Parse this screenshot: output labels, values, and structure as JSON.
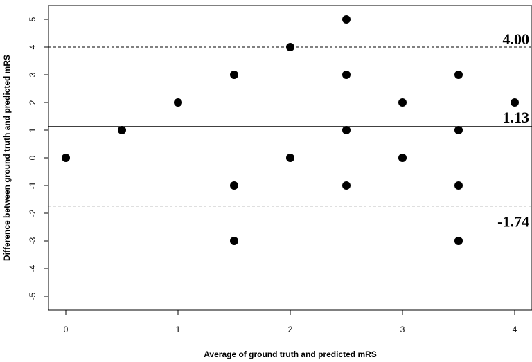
{
  "chart_data": {
    "type": "scatter",
    "title": "",
    "xlabel": "Average of ground truth and predicted mRS",
    "ylabel": "Difference between ground truth and predicted mRS",
    "xlim": [
      -0.15,
      4.15
    ],
    "ylim": [
      -5.5,
      5.5
    ],
    "x_ticks": [
      "0",
      "1",
      "2",
      "3",
      "4"
    ],
    "y_ticks": [
      "5",
      "4",
      "3",
      "2",
      "1",
      "0",
      "-1",
      "-2",
      "-3",
      "-4",
      "-5"
    ],
    "points": [
      {
        "x": 0,
        "y": 0
      },
      {
        "x": 0.5,
        "y": 1
      },
      {
        "x": 1,
        "y": 2
      },
      {
        "x": 1.5,
        "y": 3
      },
      {
        "x": 1.5,
        "y": -1
      },
      {
        "x": 1.5,
        "y": -3
      },
      {
        "x": 2,
        "y": 4
      },
      {
        "x": 2,
        "y": 0
      },
      {
        "x": 2.5,
        "y": 5
      },
      {
        "x": 2.5,
        "y": 3
      },
      {
        "x": 2.5,
        "y": 1
      },
      {
        "x": 2.5,
        "y": -1
      },
      {
        "x": 3,
        "y": 2
      },
      {
        "x": 3,
        "y": 0
      },
      {
        "x": 3.5,
        "y": 3
      },
      {
        "x": 3.5,
        "y": 1
      },
      {
        "x": 3.5,
        "y": -1
      },
      {
        "x": 3.5,
        "y": -3
      },
      {
        "x": 4,
        "y": 2
      }
    ],
    "reference_lines": [
      {
        "value": 4.0,
        "label": "4.00",
        "style": "dashed"
      },
      {
        "value": 1.13,
        "label": "1.13",
        "style": "solid"
      },
      {
        "value": -1.74,
        "label": "-1.74",
        "style": "dashed"
      }
    ],
    "grid": false
  }
}
